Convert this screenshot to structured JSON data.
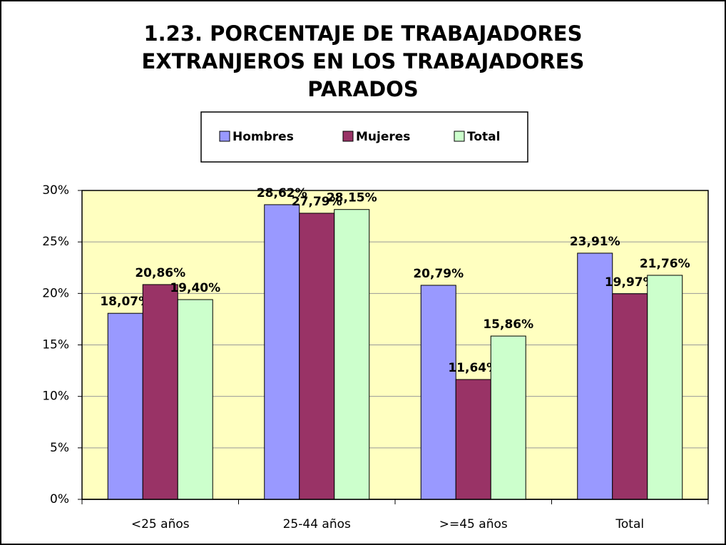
{
  "chart_data": {
    "type": "bar",
    "title": "1.23. PORCENTAJE DE TRABAJADORES EXTRANJEROS EN LOS TRABAJADORES PARADOS",
    "categories": [
      "<25 años",
      "25-44 años",
      ">=45 años",
      "Total"
    ],
    "series": [
      {
        "name": "Hombres",
        "color": "#9999ff",
        "values": [
          18.07,
          28.62,
          20.79,
          23.91
        ],
        "value_labels": [
          "18,07%",
          "28,62%",
          "20,79%",
          "23,91%"
        ]
      },
      {
        "name": "Mujeres",
        "color": "#993366",
        "values": [
          20.86,
          27.79,
          11.64,
          19.97
        ],
        "value_labels": [
          "20,86%",
          "27,79%",
          "11,64%",
          "19,97%"
        ]
      },
      {
        "name": "Total",
        "color": "#ccffcc",
        "values": [
          19.4,
          28.15,
          15.86,
          21.76
        ],
        "value_labels": [
          "19,40%",
          "28,15%",
          "15,86%",
          "21,76%"
        ]
      }
    ],
    "ylim": [
      0,
      30
    ],
    "yticks": [
      {
        "value": 0,
        "label": "0%"
      },
      {
        "value": 5,
        "label": "5%"
      },
      {
        "value": 10,
        "label": "10%"
      },
      {
        "value": 15,
        "label": "15%"
      },
      {
        "value": 20,
        "label": "20%"
      },
      {
        "value": 25,
        "label": "25%"
      },
      {
        "value": 30,
        "label": "30%"
      }
    ],
    "grid": true,
    "legend": "top"
  }
}
